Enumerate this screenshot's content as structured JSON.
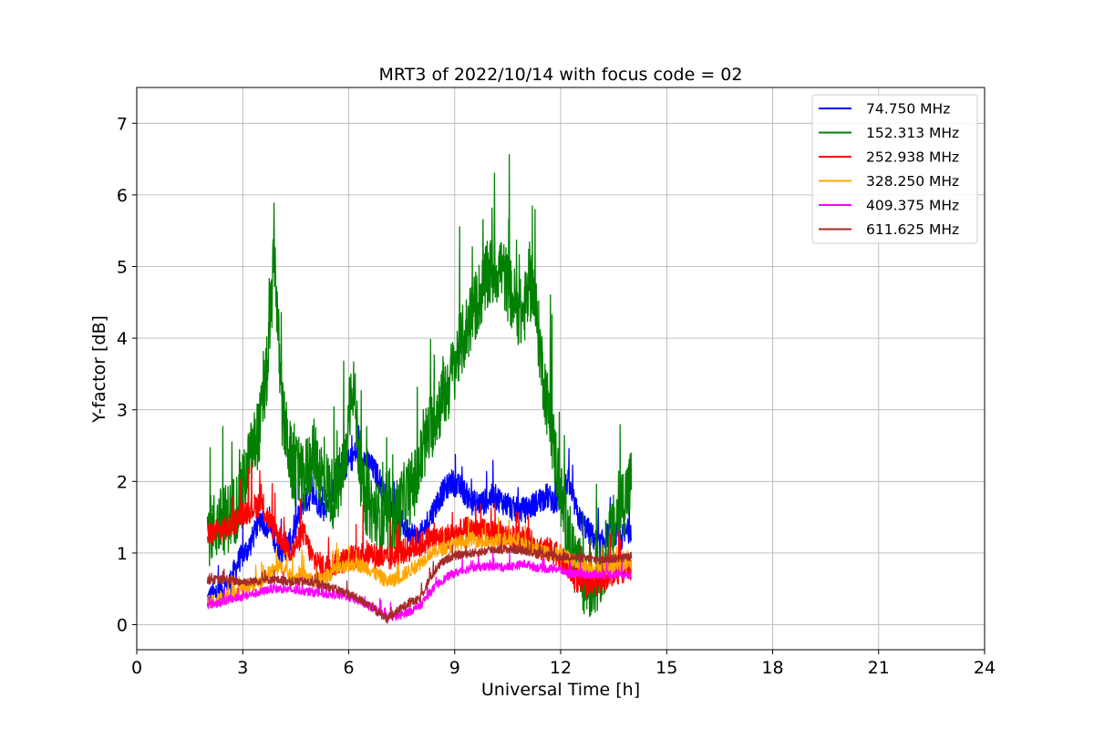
{
  "chart_data": {
    "type": "line",
    "title": "MRT3 of 2022/10/14 with focus code = 02",
    "xlabel": "Universal Time [h]",
    "ylabel": "Y-factor [dB]",
    "xlim": [
      0,
      24
    ],
    "ylim": [
      -0.35,
      7.5
    ],
    "xticks": [
      0,
      3,
      6,
      9,
      12,
      15,
      18,
      21,
      24
    ],
    "yticks": [
      0,
      1,
      2,
      3,
      4,
      5,
      6,
      7
    ],
    "grid": true,
    "legend_position": "top-right",
    "series": [
      {
        "name": "  74.750 MHz",
        "color": "#0000ff",
        "noise": 0.18,
        "x": [
          2.0,
          2.3,
          2.6,
          2.9,
          3.2,
          3.5,
          3.8,
          4.1,
          4.4,
          4.7,
          5.0,
          5.3,
          5.6,
          5.9,
          6.2,
          6.5,
          6.8,
          7.1,
          7.4,
          7.7,
          8.0,
          8.3,
          8.6,
          8.9,
          9.2,
          9.5,
          9.8,
          10.1,
          10.4,
          10.7,
          11.0,
          11.3,
          11.6,
          11.9,
          12.2,
          12.5,
          12.8,
          13.1,
          13.4,
          13.7,
          14.0
        ],
        "y": [
          0.35,
          0.45,
          0.55,
          0.9,
          1.1,
          1.5,
          1.3,
          1.0,
          1.2,
          1.7,
          1.8,
          1.6,
          1.9,
          2.2,
          2.4,
          2.3,
          2.1,
          1.7,
          1.5,
          1.3,
          1.2,
          1.5,
          1.8,
          2.0,
          1.9,
          1.7,
          1.7,
          1.8,
          1.7,
          1.6,
          1.6,
          1.7,
          1.8,
          1.7,
          2.0,
          1.5,
          1.3,
          1.1,
          1.3,
          1.2,
          1.35
        ]
      },
      {
        "name": "152.313 MHz",
        "color": "#008000",
        "noise": 0.5,
        "x": [
          2.0,
          2.3,
          2.6,
          2.9,
          3.2,
          3.5,
          3.7,
          3.9,
          4.1,
          4.4,
          4.7,
          5.0,
          5.3,
          5.6,
          5.9,
          6.1,
          6.4,
          6.7,
          7.0,
          7.3,
          7.6,
          7.9,
          8.2,
          8.5,
          8.8,
          9.1,
          9.4,
          9.7,
          10.0,
          10.3,
          10.6,
          10.9,
          11.2,
          11.5,
          11.8,
          12.1,
          12.4,
          12.7,
          13.0,
          13.3,
          13.6,
          14.0
        ],
        "y": [
          1.3,
          1.4,
          1.5,
          1.7,
          2.3,
          2.8,
          3.6,
          5.2,
          3.0,
          2.2,
          2.0,
          2.4,
          2.0,
          1.8,
          2.2,
          3.5,
          1.8,
          1.6,
          1.4,
          1.5,
          1.8,
          2.0,
          2.6,
          3.0,
          3.3,
          3.8,
          4.2,
          4.6,
          4.9,
          5.0,
          4.6,
          4.3,
          4.8,
          3.5,
          2.5,
          1.5,
          0.9,
          0.5,
          0.6,
          1.0,
          1.5,
          2.0
        ]
      },
      {
        "name": "252.938 MHz",
        "color": "#ff0000",
        "noise": 0.18,
        "x": [
          2.0,
          2.3,
          2.6,
          2.9,
          3.2,
          3.5,
          3.8,
          4.1,
          4.4,
          4.7,
          5.0,
          5.3,
          5.6,
          5.9,
          6.2,
          6.5,
          6.8,
          7.1,
          7.4,
          7.7,
          8.0,
          8.3,
          8.6,
          8.9,
          9.2,
          9.5,
          9.8,
          10.1,
          10.4,
          10.7,
          11.0,
          11.3,
          11.6,
          11.9,
          12.2,
          12.5,
          12.8,
          13.1,
          13.4,
          13.7,
          14.0
        ],
        "y": [
          1.25,
          1.3,
          1.35,
          1.5,
          1.6,
          1.7,
          1.4,
          1.2,
          1.0,
          1.3,
          0.9,
          0.8,
          0.85,
          0.9,
          0.95,
          1.0,
          0.95,
          0.9,
          1.0,
          1.05,
          1.1,
          1.2,
          1.2,
          1.25,
          1.3,
          1.35,
          1.3,
          1.3,
          1.25,
          1.2,
          1.2,
          1.1,
          1.05,
          1.0,
          0.8,
          0.6,
          0.55,
          0.6,
          0.7,
          0.75,
          0.8
        ]
      },
      {
        "name": "328.250 MHz",
        "color": "#ffa500",
        "noise": 0.1,
        "x": [
          2.0,
          2.3,
          2.6,
          2.9,
          3.2,
          3.5,
          3.8,
          4.1,
          4.4,
          4.7,
          5.0,
          5.3,
          5.6,
          5.9,
          6.2,
          6.5,
          6.8,
          7.1,
          7.4,
          7.7,
          8.0,
          8.3,
          8.6,
          8.9,
          9.2,
          9.5,
          9.8,
          10.1,
          10.4,
          10.7,
          11.0,
          11.3,
          11.6,
          11.9,
          12.2,
          12.5,
          12.8,
          13.1,
          13.4,
          13.7,
          14.0
        ],
        "y": [
          0.3,
          0.35,
          0.4,
          0.5,
          0.55,
          0.6,
          0.75,
          0.8,
          0.65,
          0.7,
          0.6,
          0.65,
          0.75,
          0.8,
          0.85,
          0.8,
          0.7,
          0.6,
          0.65,
          0.75,
          0.85,
          1.0,
          1.05,
          1.1,
          1.15,
          1.2,
          1.15,
          1.15,
          1.2,
          1.2,
          1.1,
          1.05,
          1.0,
          1.0,
          0.95,
          0.85,
          0.8,
          0.8,
          0.8,
          0.85,
          0.85
        ]
      },
      {
        "name": "409.375 MHz",
        "color": "#ff00ff",
        "noise": 0.06,
        "x": [
          2.0,
          2.3,
          2.6,
          2.9,
          3.2,
          3.5,
          3.8,
          4.1,
          4.4,
          4.7,
          5.0,
          5.3,
          5.6,
          5.9,
          6.2,
          6.5,
          6.8,
          7.1,
          7.4,
          7.7,
          8.0,
          8.3,
          8.6,
          8.9,
          9.2,
          9.5,
          9.8,
          10.1,
          10.4,
          10.7,
          11.0,
          11.3,
          11.6,
          11.9,
          12.2,
          12.5,
          12.8,
          13.1,
          13.4,
          13.7,
          14.0
        ],
        "y": [
          0.28,
          0.3,
          0.35,
          0.38,
          0.42,
          0.45,
          0.5,
          0.5,
          0.48,
          0.47,
          0.45,
          0.43,
          0.42,
          0.4,
          0.35,
          0.28,
          0.2,
          0.1,
          0.12,
          0.18,
          0.25,
          0.45,
          0.6,
          0.7,
          0.75,
          0.8,
          0.8,
          0.82,
          0.8,
          0.82,
          0.85,
          0.8,
          0.78,
          0.78,
          0.72,
          0.7,
          0.7,
          0.7,
          0.7,
          0.7,
          0.7
        ]
      },
      {
        "name": "611.625 MHz",
        "color": "#a52a2a",
        "noise": 0.06,
        "x": [
          2.0,
          2.3,
          2.6,
          2.9,
          3.2,
          3.5,
          3.8,
          4.1,
          4.4,
          4.7,
          5.0,
          5.3,
          5.6,
          5.9,
          6.2,
          6.5,
          6.8,
          7.1,
          7.4,
          7.7,
          8.0,
          8.3,
          8.6,
          8.9,
          9.2,
          9.5,
          9.8,
          10.1,
          10.4,
          10.7,
          11.0,
          11.3,
          11.6,
          11.9,
          12.2,
          12.5,
          12.8,
          13.1,
          13.4,
          13.7,
          14.0
        ],
        "y": [
          0.62,
          0.63,
          0.62,
          0.6,
          0.6,
          0.62,
          0.63,
          0.62,
          0.6,
          0.6,
          0.58,
          0.55,
          0.5,
          0.45,
          0.38,
          0.3,
          0.18,
          0.08,
          0.2,
          0.3,
          0.35,
          0.65,
          0.85,
          0.95,
          0.98,
          1.0,
          1.02,
          1.05,
          1.05,
          1.05,
          1.03,
          1.0,
          0.98,
          0.95,
          0.95,
          0.93,
          0.92,
          0.9,
          0.92,
          0.93,
          0.95
        ]
      }
    ]
  }
}
